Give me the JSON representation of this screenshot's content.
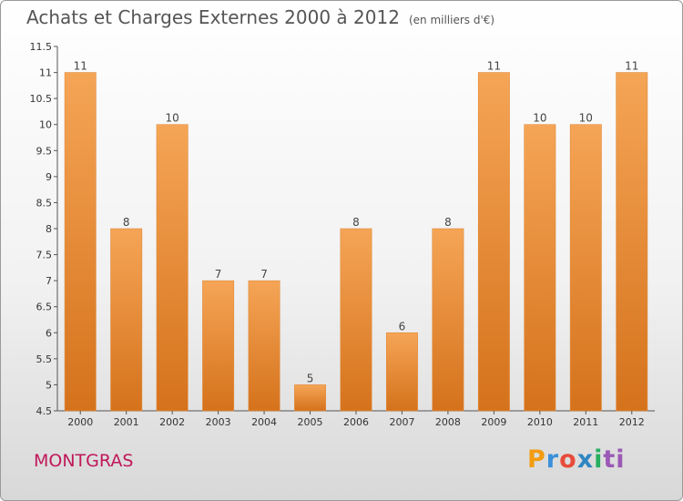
{
  "chart_data": {
    "type": "bar",
    "title": "Achats et Charges Externes 2000 à 2012",
    "unit": "(en milliers d'€)",
    "categories": [
      "2000",
      "2001",
      "2002",
      "2003",
      "2004",
      "2005",
      "2006",
      "2007",
      "2008",
      "2009",
      "2010",
      "2011",
      "2012"
    ],
    "values": [
      11,
      8,
      10,
      7,
      7,
      5,
      8,
      6,
      8,
      11,
      10,
      10,
      11
    ],
    "value_labels": [
      "11",
      "8",
      "10",
      "7",
      "7",
      "5",
      "8",
      "6",
      "8",
      "11",
      "10",
      "10",
      "11"
    ],
    "ylim": [
      4.5,
      11.5
    ],
    "yticks": [
      "4.5",
      "5",
      "5.5",
      "6",
      "6.5",
      "7",
      "7.5",
      "8",
      "8.5",
      "9",
      "9.5",
      "10",
      "10.5",
      "11",
      "11.5"
    ],
    "xlabel": "",
    "ylabel": "",
    "grid": false,
    "colors": {
      "bar_top": "#f5a556",
      "bar_bottom": "#d5721c"
    }
  },
  "footer": {
    "commune": "MONTGRAS",
    "logo_letters": [
      "P",
      "r",
      "o",
      "x",
      "i",
      "ti"
    ]
  }
}
